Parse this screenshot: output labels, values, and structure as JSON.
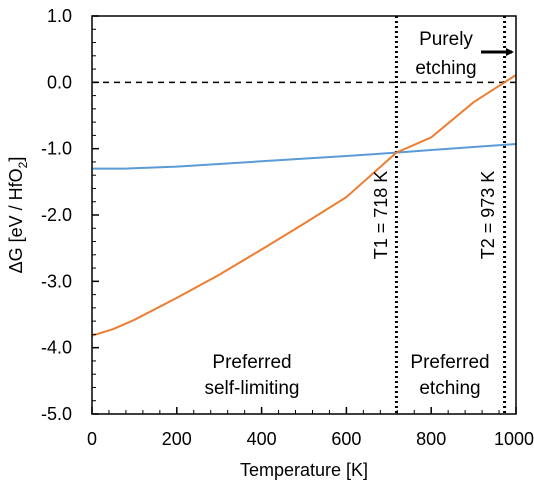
{
  "chart_data": {
    "type": "line",
    "xlabel": "Temperature [K]",
    "ylabel_main": "ΔG [eV / HfO",
    "ylabel_sub": "2",
    "ylabel_end": "]",
    "xlim": [
      0,
      1000
    ],
    "ylim": [
      -5.0,
      1.0
    ],
    "x_ticks": [
      0,
      200,
      400,
      600,
      800,
      1000
    ],
    "x_tick_labels": [
      "0",
      "200",
      "400",
      "600",
      "800",
      "1000"
    ],
    "y_ticks": [
      -5.0,
      -4.0,
      -3.0,
      -2.0,
      -1.0,
      0.0,
      1.0
    ],
    "y_tick_labels": [
      "-5.0",
      "-4.0",
      "-3.0",
      "-2.0",
      "-1.0",
      "0.0",
      "1.0"
    ],
    "grid": false,
    "series": [
      {
        "color": "#5b9bd5",
        "x": [
          0,
          80,
          200,
          400,
          600,
          718,
          800,
          1000
        ],
        "y": [
          -1.3,
          -1.3,
          -1.27,
          -1.19,
          -1.11,
          -1.06,
          -1.02,
          -0.93
        ]
      },
      {
        "color": "#ed7d31",
        "x": [
          0,
          50,
          100,
          200,
          300,
          400,
          500,
          600,
          718,
          800,
          900,
          973,
          1000
        ],
        "y": [
          -3.82,
          -3.72,
          -3.58,
          -3.25,
          -2.9,
          -2.52,
          -2.13,
          -1.73,
          -1.06,
          -0.83,
          -0.3,
          0.0,
          0.11
        ]
      }
    ],
    "reference_lines": [
      {
        "orientation": "horizontal",
        "y": 0.0,
        "style": "dashed"
      },
      {
        "orientation": "vertical",
        "x": 718,
        "style": "dotted",
        "label": "T1 = 718 K"
      },
      {
        "orientation": "vertical",
        "x": 973,
        "style": "dotted",
        "label": "T2 = 973 K"
      }
    ],
    "annotations": {
      "self_limiting": [
        "Preferred",
        "self-limiting"
      ],
      "etching": [
        "Preferred",
        "etching"
      ],
      "purely_etching": [
        "Purely",
        "etching"
      ]
    }
  }
}
